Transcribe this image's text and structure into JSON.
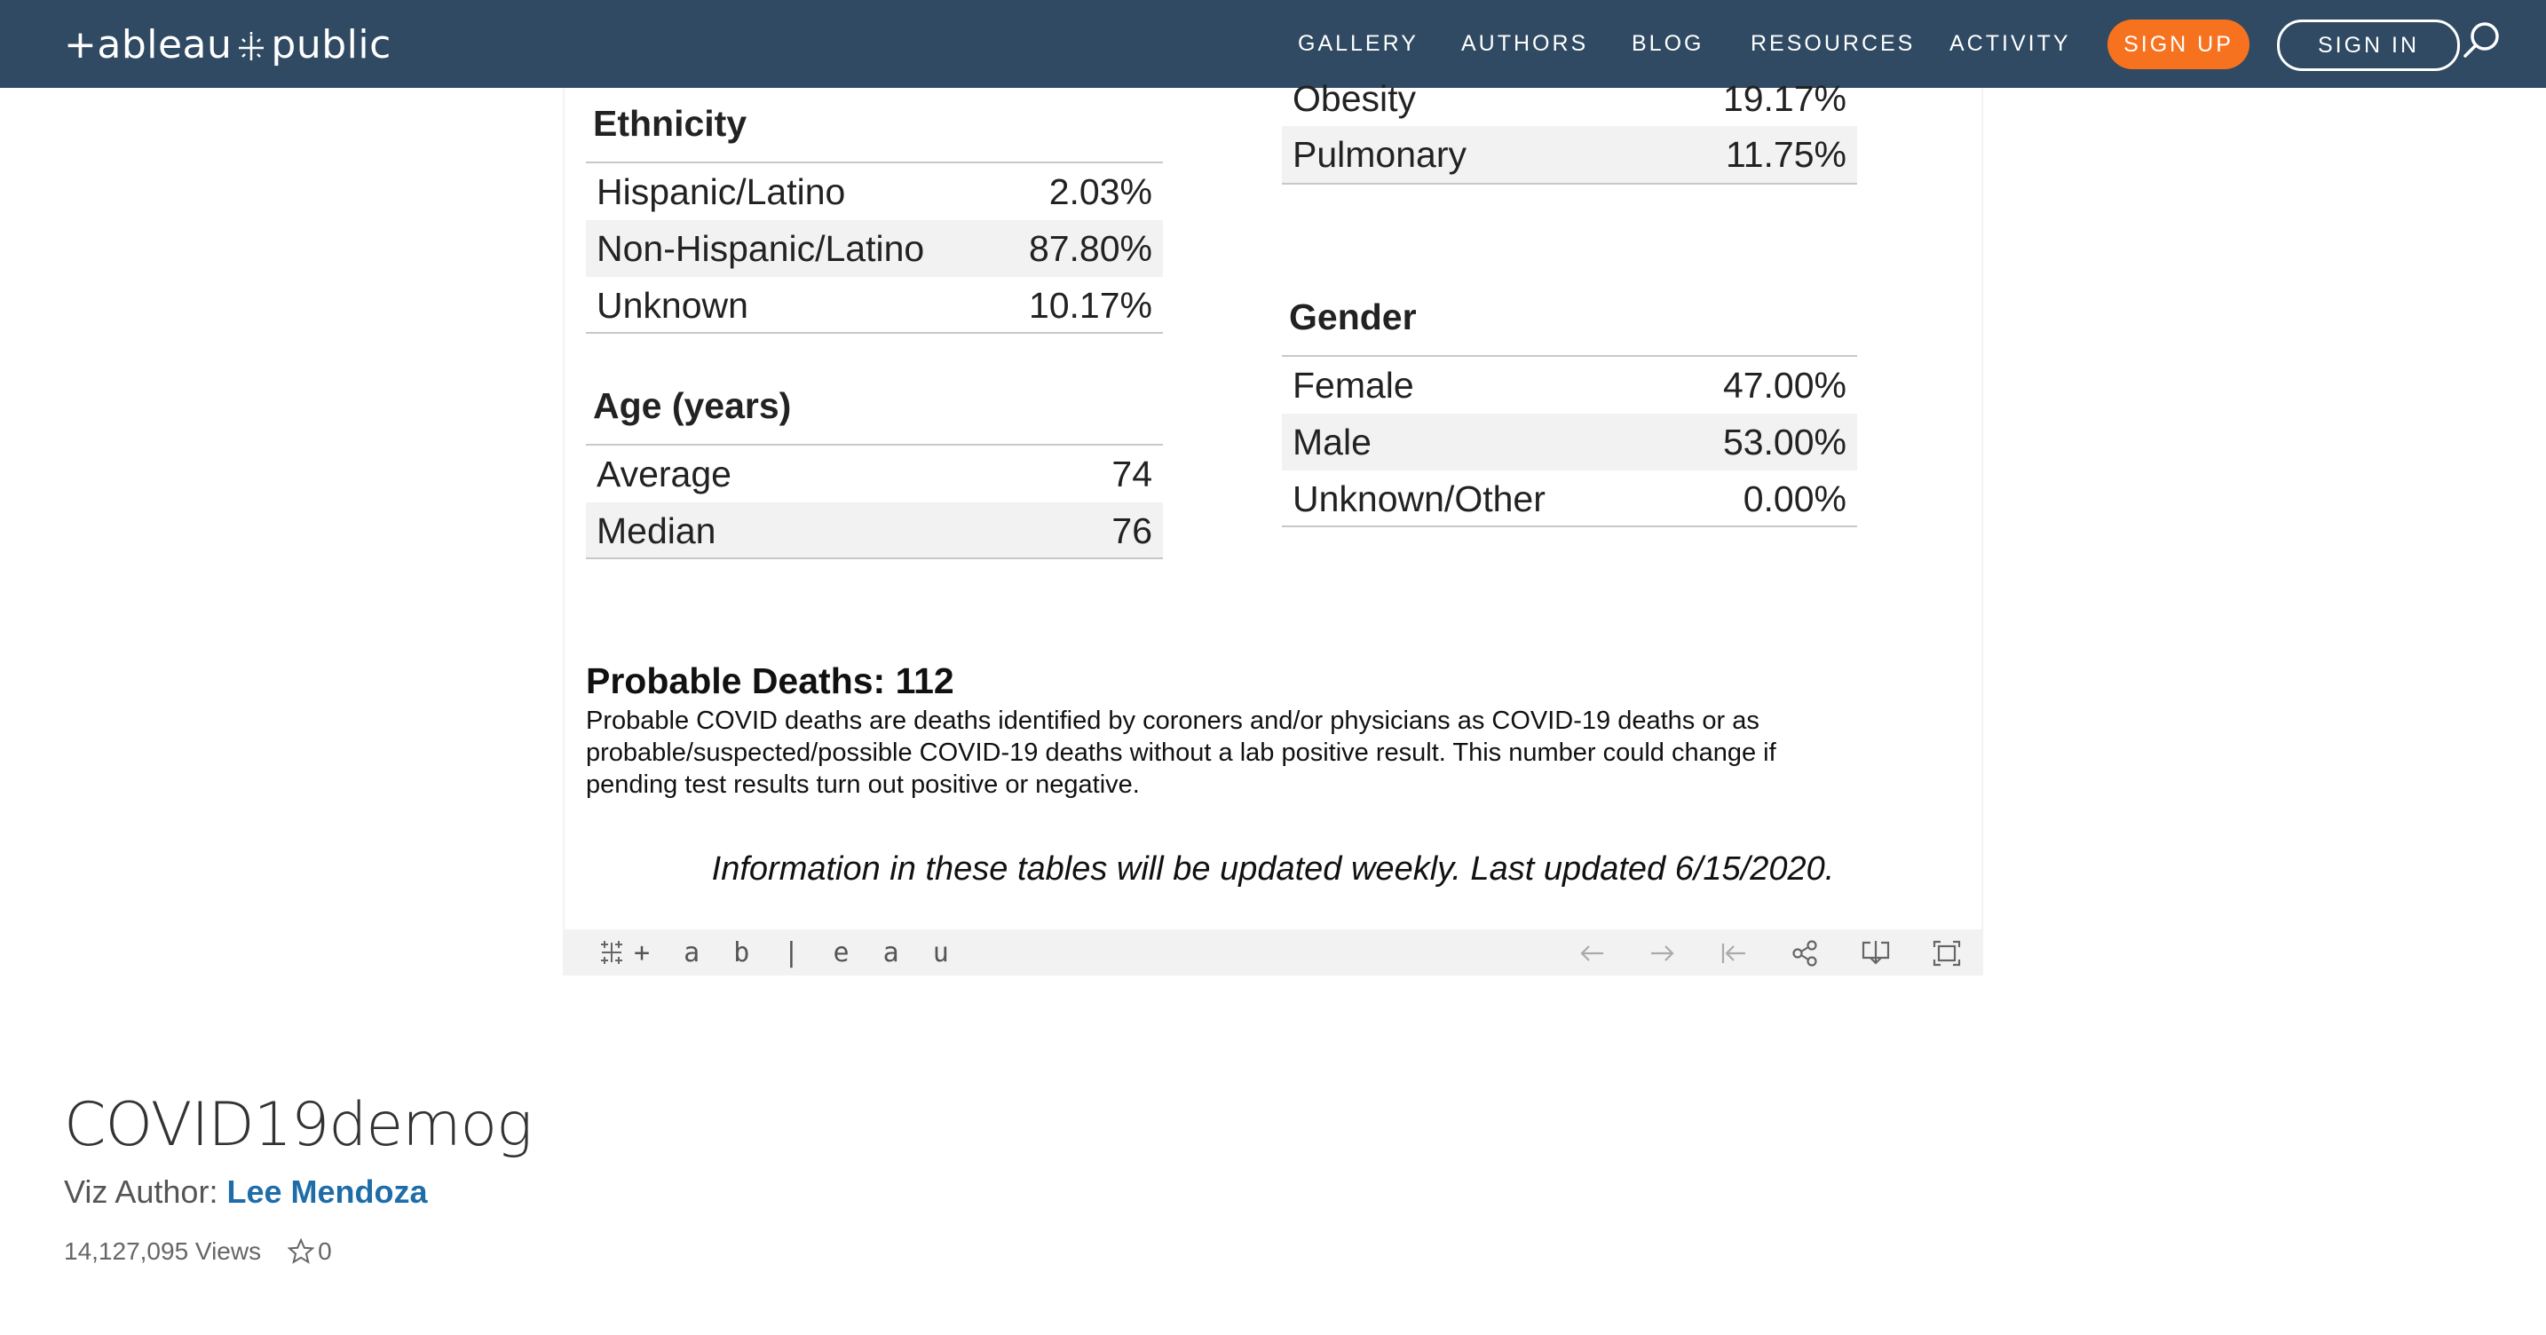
{
  "header": {
    "logo_text_left": "+ableau",
    "logo_text_right": "public",
    "nav": [
      "GALLERY",
      "AUTHORS",
      "BLOG",
      "RESOURCES",
      "ACTIVITY"
    ],
    "sign_up": "SIGN UP",
    "sign_in": "SIGN IN"
  },
  "viz": {
    "risk_factors": {
      "rows": [
        {
          "label": "Obesity",
          "value": "19.17%"
        },
        {
          "label": "Pulmonary",
          "value": "11.75%"
        }
      ]
    },
    "ethnicity": {
      "title": "Ethnicity",
      "rows": [
        {
          "label": "Hispanic/Latino",
          "value": "2.03%"
        },
        {
          "label": "Non-Hispanic/Latino",
          "value": "87.80%"
        },
        {
          "label": "Unknown",
          "value": "10.17%"
        }
      ]
    },
    "age": {
      "title": "Age (years)",
      "rows": [
        {
          "label": "Average",
          "value": "74"
        },
        {
          "label": "Median",
          "value": "76"
        }
      ]
    },
    "gender": {
      "title": "Gender",
      "rows": [
        {
          "label": "Female",
          "value": "47.00%"
        },
        {
          "label": "Male",
          "value": "53.00%"
        },
        {
          "label": "Unknown/Other",
          "value": "0.00%"
        }
      ]
    },
    "probable": {
      "title": "Probable Deaths: 112",
      "description": "Probable COVID deaths are deaths identified by coroners and/or physicians as COVID-19 deaths or as probable/suspected/possible COVID-19 deaths without a lab positive result. This number could change if pending test results turn out positive or negative."
    },
    "updated_note": "Information in these tables will be updated weekly. Last updated 6/15/2020.",
    "toolbar_logo": "+ a b | e a u"
  },
  "page": {
    "title": "COVID19demog",
    "author_prefix": "Viz Author:",
    "author_name": "Lee Mendoza",
    "views": "14,127,095 Views",
    "favorites": "0"
  },
  "colors": {
    "nav_bg": "#2f4a62",
    "signup_orange": "#f6721f",
    "author_link": "#1f6da8"
  },
  "icons": [
    "search-icon",
    "back-icon",
    "forward-icon",
    "reset-icon",
    "share-icon",
    "download-icon",
    "fullscreen-icon",
    "star-icon"
  ]
}
